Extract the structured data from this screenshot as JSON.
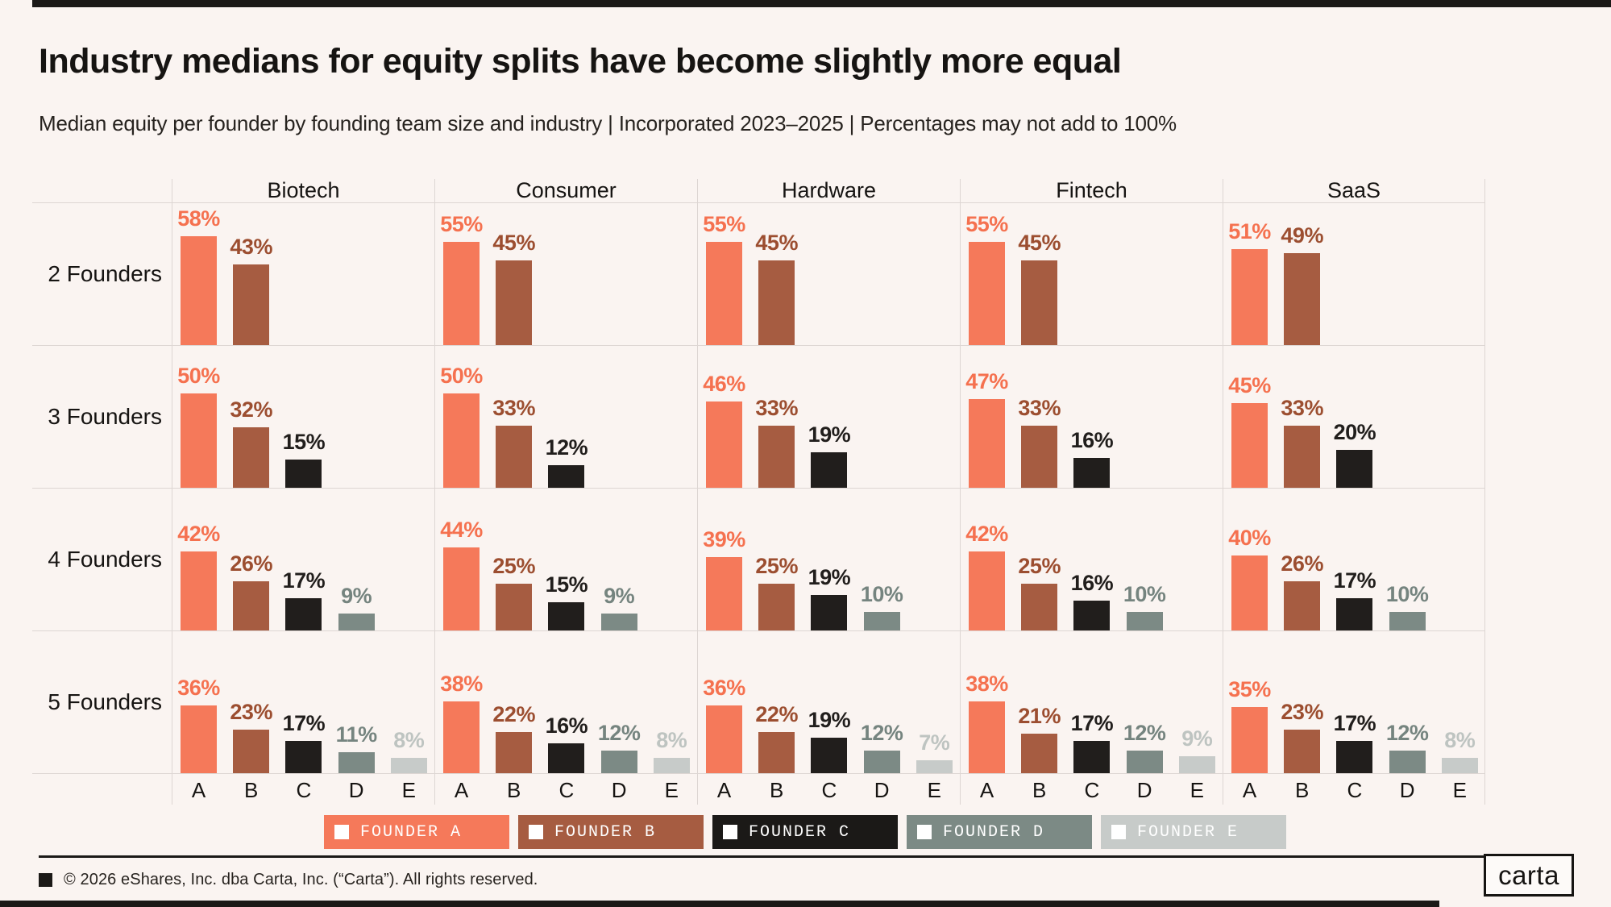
{
  "header": {
    "title": "Industry medians for equity splits have become slightly more equal",
    "subtitle": "Median equity per founder by founding team size and industry | Incorporated 2023–2025 | Percentages may not add to 100%"
  },
  "chart_data": {
    "type": "bar",
    "layout": "small-multiples grid: rows = founding team size, columns = industry; value labels above bars; no y-axis shown; light gridlines between cells",
    "unit": "%",
    "industries": [
      "Biotech",
      "Consumer",
      "Hardware",
      "Fintech",
      "SaaS"
    ],
    "row_labels": [
      "2 Founders",
      "3 Founders",
      "4 Founders",
      "5 Founders"
    ],
    "x_categories": [
      "A",
      "B",
      "C",
      "D",
      "E"
    ],
    "founder_colors": [
      "#F5795A",
      "#A65C41",
      "#211E1C",
      "#7C8A85",
      "#C7CBC9"
    ],
    "label_colors": [
      "#F5714F",
      "#9C4E30",
      "#211E1C",
      "#75847F",
      "#BEC4C1"
    ],
    "values": [
      [
        [
          58,
          43
        ],
        [
          55,
          45
        ],
        [
          55,
          45
        ],
        [
          55,
          45
        ],
        [
          51,
          49
        ]
      ],
      [
        [
          50,
          32,
          15
        ],
        [
          50,
          33,
          12
        ],
        [
          46,
          33,
          19
        ],
        [
          47,
          33,
          16
        ],
        [
          45,
          33,
          20
        ]
      ],
      [
        [
          42,
          26,
          17,
          9
        ],
        [
          44,
          25,
          15,
          9
        ],
        [
          39,
          25,
          19,
          10
        ],
        [
          42,
          25,
          16,
          10
        ],
        [
          40,
          26,
          17,
          10
        ]
      ],
      [
        [
          36,
          23,
          17,
          11,
          8
        ],
        [
          38,
          22,
          16,
          12,
          8
        ],
        [
          36,
          22,
          19,
          12,
          7
        ],
        [
          38,
          21,
          17,
          12,
          9
        ],
        [
          35,
          23,
          17,
          12,
          8
        ]
      ]
    ]
  },
  "legend": {
    "items": [
      {
        "label": "FOUNDER A",
        "color": "#F5795A"
      },
      {
        "label": "FOUNDER B",
        "color": "#A65C41"
      },
      {
        "label": "FOUNDER C",
        "color": "#1B1917"
      },
      {
        "label": "FOUNDER D",
        "color": "#7C8A85"
      },
      {
        "label": "FOUNDER E",
        "color": "#C7CBC9"
      }
    ]
  },
  "footer": {
    "copyright": "© 2026 eShares, Inc. dba Carta, Inc. (“Carta”). All rights reserved.",
    "logo_text": "carta"
  },
  "colors": {
    "background": "#FAF4F1",
    "gridline": "#DDD6D3",
    "frame_bar": "#1B1917",
    "text": "#161412"
  }
}
